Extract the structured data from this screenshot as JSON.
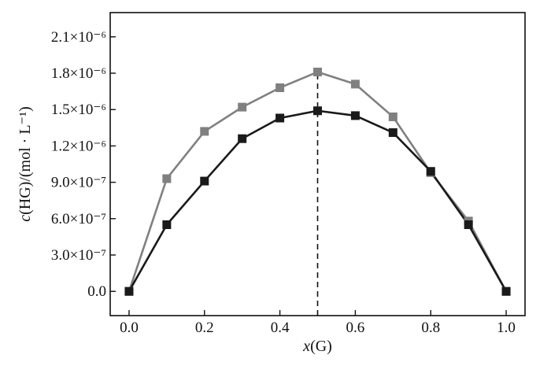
{
  "chart_data": {
    "type": "line",
    "xlabel": "x(G)",
    "ylabel": "c(HG)/(mol · L⁻¹)",
    "xlim": [
      -0.05,
      1.05
    ],
    "ylim": [
      -2e-07,
      2.3e-06
    ],
    "x_ticks": [
      0.0,
      0.2,
      0.4,
      0.6,
      0.8,
      1.0
    ],
    "x_tick_labels": [
      "0.0",
      "0.2",
      "0.4",
      "0.6",
      "0.8",
      "1.0"
    ],
    "y_ticks": [
      0,
      3e-07,
      6e-07,
      9e-07,
      1.2e-06,
      1.5e-06,
      1.8e-06,
      2.1e-06
    ],
    "y_tick_labels": [
      "0.0",
      "3.0×10⁻⁷",
      "6.0×10⁻⁷",
      "9.0×10⁻⁷",
      "1.2×10⁻⁶",
      "1.5×10⁻⁶",
      "1.8×10⁻⁶",
      "2.1×10⁻⁶"
    ],
    "grid": false,
    "legend": "none",
    "vline_x": 0.5,
    "x": [
      0.0,
      0.1,
      0.2,
      0.3,
      0.4,
      0.5,
      0.6,
      0.7,
      0.8,
      0.9,
      1.0
    ],
    "series": [
      {
        "color": "#808080",
        "marker": "square",
        "values": [
          0.0,
          9.3e-07,
          1.32e-06,
          1.52e-06,
          1.68e-06,
          1.81e-06,
          1.71e-06,
          1.44e-06,
          9.8e-07,
          5.8e-07,
          0.0
        ]
      },
      {
        "color": "#1a1a1a",
        "marker": "square",
        "values": [
          0.0,
          5.5e-07,
          9.1e-07,
          1.26e-06,
          1.43e-06,
          1.49e-06,
          1.45e-06,
          1.31e-06,
          9.9e-07,
          5.5e-07,
          0.0
        ]
      }
    ]
  }
}
